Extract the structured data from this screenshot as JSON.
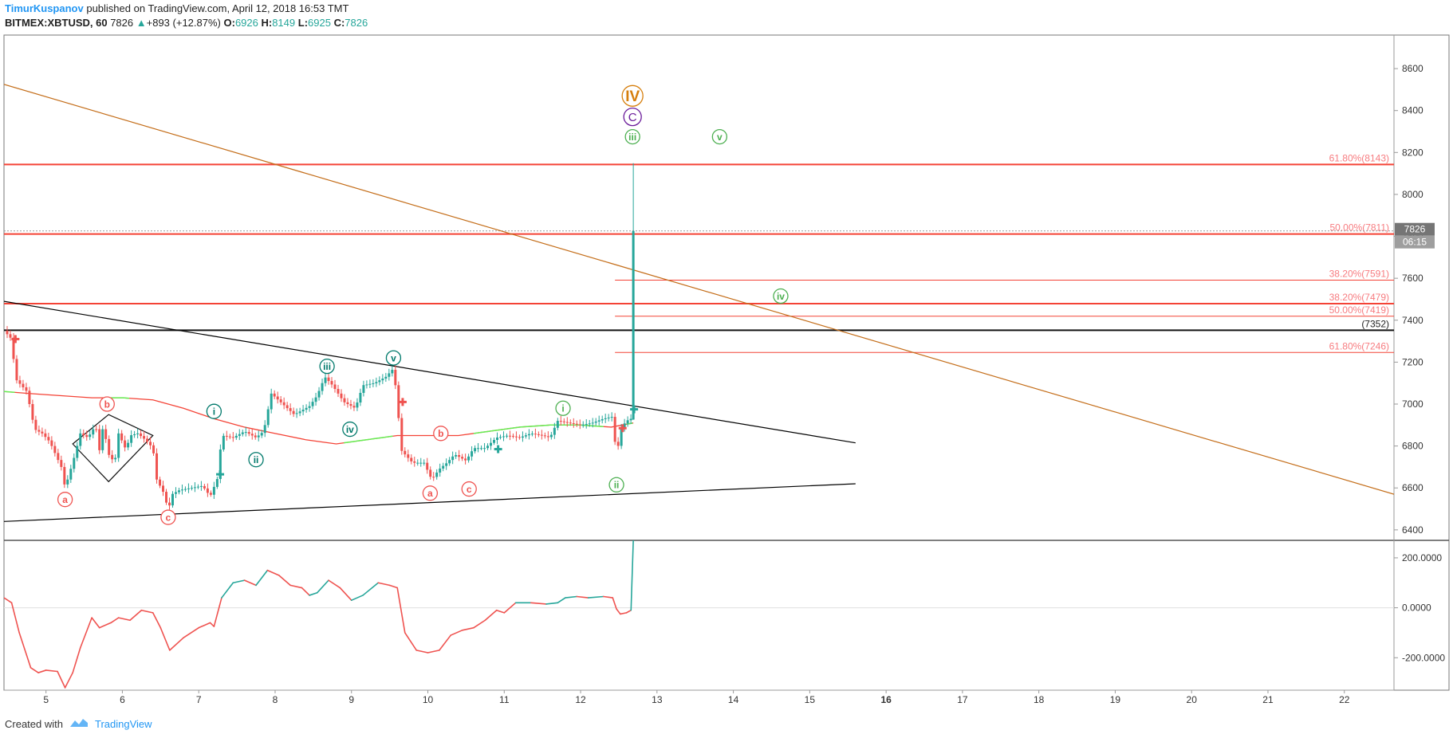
{
  "header": {
    "author": "TimurKuspanov",
    "published": "published on TradingView.com, April 12, 2018 16:53 TMT",
    "symbol": "BITMEX:XBTUSD, 60",
    "last": "7826",
    "change": "+893 (+12.87%)",
    "o_label": "O:",
    "o": "6926",
    "h_label": "H:",
    "h": "8149",
    "l_label": "L:",
    "l": "6925",
    "c_label": "C:",
    "c": "7826"
  },
  "footer": {
    "created": "Created with",
    "brand": "TradingView"
  },
  "colors": {
    "up": "#26a69a",
    "down": "#ef5350",
    "fib": "#f44336",
    "fib_text": "#f77c80",
    "trend_brown": "#c46e1a",
    "ma_red": "#f44336",
    "ma_green": "#66ee55",
    "osc_up": "#26a69a",
    "osc_down": "#ef5350",
    "label_green": "#4caf50",
    "label_teal": "#00796b",
    "label_purple": "#6a1b9a",
    "label_orange": "#d67e0c"
  },
  "chart_data": {
    "type": "candlestick",
    "title": "BITMEX:XBTUSD, 60",
    "x_ticks": [
      "5",
      "6",
      "7",
      "8",
      "9",
      "10",
      "11",
      "12",
      "13",
      "14",
      "15",
      "16",
      "17",
      "18",
      "19",
      "20",
      "21",
      "22"
    ],
    "x_bold_ticks": [
      "16"
    ],
    "y_ticks": [
      6400,
      6600,
      6800,
      7000,
      7200,
      7400,
      7600,
      7800,
      8000,
      8200,
      8400,
      8600
    ],
    "ylim": [
      6350,
      8760
    ],
    "xlim": [
      4.45,
      22.65
    ],
    "last_price": {
      "value": 7826,
      "label": "7826",
      "countdown": "06:15"
    },
    "price_path": [
      [
        4.45,
        7350
      ],
      [
        4.55,
        7310
      ],
      [
        4.6,
        7120
      ],
      [
        4.7,
        7080
      ],
      [
        4.75,
        7060
      ],
      [
        4.85,
        6880
      ],
      [
        4.95,
        6860
      ],
      [
        5.05,
        6820
      ],
      [
        5.1,
        6780
      ],
      [
        5.2,
        6700
      ],
      [
        5.25,
        6600
      ],
      [
        5.3,
        6660
      ],
      [
        5.38,
        6760
      ],
      [
        5.45,
        6860
      ],
      [
        5.55,
        6840
      ],
      [
        5.65,
        6900
      ],
      [
        5.7,
        6780
      ],
      [
        5.75,
        6900
      ],
      [
        5.82,
        6760
      ],
      [
        5.9,
        6720
      ],
      [
        5.95,
        6860
      ],
      [
        6.05,
        6780
      ],
      [
        6.1,
        6850
      ],
      [
        6.2,
        6860
      ],
      [
        6.3,
        6830
      ],
      [
        6.4,
        6790
      ],
      [
        6.45,
        6640
      ],
      [
        6.55,
        6570
      ],
      [
        6.6,
        6490
      ],
      [
        6.65,
        6570
      ],
      [
        6.75,
        6590
      ],
      [
        6.9,
        6600
      ],
      [
        7.05,
        6610
      ],
      [
        7.15,
        6560
      ],
      [
        7.25,
        6650
      ],
      [
        7.3,
        6850
      ],
      [
        7.45,
        6840
      ],
      [
        7.6,
        6870
      ],
      [
        7.75,
        6840
      ],
      [
        7.85,
        6870
      ],
      [
        7.95,
        7050
      ],
      [
        8.1,
        7000
      ],
      [
        8.25,
        6950
      ],
      [
        8.45,
        6990
      ],
      [
        8.55,
        7040
      ],
      [
        8.65,
        7130
      ],
      [
        8.75,
        7090
      ],
      [
        8.9,
        7010
      ],
      [
        9.05,
        6980
      ],
      [
        9.15,
        7090
      ],
      [
        9.3,
        7100
      ],
      [
        9.45,
        7130
      ],
      [
        9.55,
        7170
      ],
      [
        9.6,
        7010
      ],
      [
        9.65,
        6780
      ],
      [
        9.8,
        6720
      ],
      [
        9.95,
        6720
      ],
      [
        10.05,
        6640
      ],
      [
        10.15,
        6690
      ],
      [
        10.25,
        6720
      ],
      [
        10.35,
        6760
      ],
      [
        10.5,
        6730
      ],
      [
        10.6,
        6790
      ],
      [
        10.75,
        6790
      ],
      [
        10.9,
        6840
      ],
      [
        11.05,
        6850
      ],
      [
        11.2,
        6840
      ],
      [
        11.35,
        6860
      ],
      [
        11.5,
        6850
      ],
      [
        11.6,
        6840
      ],
      [
        11.7,
        6920
      ],
      [
        11.85,
        6910
      ],
      [
        12.0,
        6900
      ],
      [
        12.15,
        6910
      ],
      [
        12.3,
        6930
      ],
      [
        12.42,
        6940
      ],
      [
        12.47,
        6740
      ],
      [
        12.52,
        6880
      ],
      [
        12.6,
        6920
      ],
      [
        12.66,
        6930
      ],
      [
        12.68,
        6926
      ],
      [
        12.69,
        7826
      ]
    ],
    "last_candle": {
      "x": 12.69,
      "open": 6926,
      "high": 8149,
      "low": 6925,
      "close": 7826
    },
    "ma": [
      [
        4.45,
        7060
      ],
      [
        4.8,
        7050
      ],
      [
        5.2,
        7040
      ],
      [
        5.6,
        7030
      ],
      [
        6.0,
        7030
      ],
      [
        6.4,
        7020
      ],
      [
        6.8,
        6980
      ],
      [
        7.2,
        6930
      ],
      [
        7.6,
        6890
      ],
      [
        8.0,
        6860
      ],
      [
        8.4,
        6830
      ],
      [
        8.8,
        6810
      ],
      [
        9.2,
        6830
      ],
      [
        9.6,
        6850
      ],
      [
        10.0,
        6850
      ],
      [
        10.4,
        6850
      ],
      [
        10.8,
        6870
      ],
      [
        11.2,
        6890
      ],
      [
        11.6,
        6900
      ],
      [
        12.0,
        6900
      ],
      [
        12.4,
        6890
      ],
      [
        12.69,
        6910
      ]
    ],
    "ma_green_segments": [
      [
        4.45,
        4.6
      ],
      [
        5.85,
        6.1
      ],
      [
        8.9,
        9.55
      ],
      [
        10.6,
        12.3
      ],
      [
        12.6,
        12.69
      ]
    ],
    "fib_levels": [
      {
        "label": "61.80%(8143)",
        "value": 8143,
        "from": 4.45,
        "bold": true
      },
      {
        "label": "50.00%(7811)",
        "value": 7811,
        "from": 4.45,
        "bold": true
      },
      {
        "label": "38.20%(7591)",
        "value": 7591,
        "from": 12.45,
        "bold": false
      },
      {
        "label": "38.20%(7479)",
        "value": 7479,
        "from": 4.45,
        "bold": true
      },
      {
        "label": "50.00%(7419)",
        "value": 7419,
        "from": 12.45,
        "bold": false
      },
      {
        "label": "61.80%(7246)",
        "value": 7246,
        "from": 12.45,
        "bold": false
      }
    ],
    "horizontal_level": {
      "label": "(7352)",
      "value": 7352
    },
    "trend_lines": [
      {
        "name": "upper-triangle-line",
        "p1": [
          4.45,
          7490
        ],
        "p2": [
          15.6,
          6815
        ],
        "color": "#000000"
      },
      {
        "name": "lower-triangle-line",
        "p1": [
          4.45,
          6440
        ],
        "p2": [
          15.6,
          6620
        ],
        "color": "#000000"
      },
      {
        "name": "long-downtrend-line",
        "p1": [
          4.45,
          8525
        ],
        "p2": [
          22.65,
          6570
        ],
        "color": "#c46e1a"
      }
    ],
    "diamond": [
      [
        5.35,
        6810
      ],
      [
        5.82,
        6950
      ],
      [
        6.4,
        6850
      ],
      [
        5.82,
        6630
      ]
    ],
    "wave_labels": [
      {
        "text": "a",
        "x": 5.25,
        "y": 6545,
        "style": "red"
      },
      {
        "text": "b",
        "x": 5.8,
        "y": 7000,
        "style": "red"
      },
      {
        "text": "c",
        "x": 6.6,
        "y": 6460,
        "style": "red"
      },
      {
        "text": "i",
        "x": 7.2,
        "y": 6965,
        "style": "teal"
      },
      {
        "text": "ii",
        "x": 7.75,
        "y": 6735,
        "style": "teal"
      },
      {
        "text": "iii",
        "x": 8.68,
        "y": 7180,
        "style": "teal"
      },
      {
        "text": "iv",
        "x": 8.98,
        "y": 6880,
        "style": "teal"
      },
      {
        "text": "v",
        "x": 9.55,
        "y": 7220,
        "style": "teal"
      },
      {
        "text": "b",
        "x": 10.17,
        "y": 6860,
        "style": "red"
      },
      {
        "text": "a",
        "x": 10.03,
        "y": 6575,
        "style": "red"
      },
      {
        "text": "c",
        "x": 10.54,
        "y": 6595,
        "style": "red"
      },
      {
        "text": "i",
        "x": 11.77,
        "y": 6980,
        "style": "green"
      },
      {
        "text": "ii",
        "x": 12.47,
        "y": 6615,
        "style": "green"
      },
      {
        "text": "iii",
        "x": 12.68,
        "y": 8275,
        "style": "green"
      },
      {
        "text": "v",
        "x": 13.82,
        "y": 8275,
        "style": "green"
      },
      {
        "text": "iv",
        "x": 14.62,
        "y": 7515,
        "style": "green"
      },
      {
        "text": "C",
        "x": 12.68,
        "y": 8370,
        "style": "purple"
      },
      {
        "text": "IV",
        "x": 12.68,
        "y": 8470,
        "style": "orange"
      }
    ],
    "cross_markers": [
      {
        "x": 4.6,
        "y": 7310,
        "color": "#ef5350"
      },
      {
        "x": 7.28,
        "y": 6665,
        "color": "#26a69a"
      },
      {
        "x": 9.67,
        "y": 7010,
        "color": "#ef5350"
      },
      {
        "x": 10.92,
        "y": 6785,
        "color": "#26a69a"
      },
      {
        "x": 12.55,
        "y": 6885,
        "color": "#ef5350"
      },
      {
        "x": 12.7,
        "y": 6975,
        "color": "#26a69a"
      }
    ],
    "oscillator": {
      "y_ticks": [
        200,
        0,
        -200
      ],
      "y_tick_labels": [
        "200.0000",
        "0.0000",
        "-200.0000"
      ],
      "ylim": [
        -330,
        270
      ],
      "values": [
        [
          4.45,
          40
        ],
        [
          4.55,
          20
        ],
        [
          4.65,
          -100
        ],
        [
          4.8,
          -240
        ],
        [
          4.9,
          -260
        ],
        [
          5.0,
          -250
        ],
        [
          5.15,
          -255
        ],
        [
          5.25,
          -320
        ],
        [
          5.35,
          -260
        ],
        [
          5.45,
          -160
        ],
        [
          5.6,
          -40
        ],
        [
          5.7,
          -80
        ],
        [
          5.85,
          -60
        ],
        [
          5.95,
          -40
        ],
        [
          6.1,
          -50
        ],
        [
          6.25,
          -10
        ],
        [
          6.4,
          -20
        ],
        [
          6.5,
          -80
        ],
        [
          6.62,
          -170
        ],
        [
          6.8,
          -120
        ],
        [
          7.0,
          -80
        ],
        [
          7.15,
          -60
        ],
        [
          7.2,
          -75
        ],
        [
          7.3,
          40
        ],
        [
          7.45,
          100
        ],
        [
          7.6,
          110
        ],
        [
          7.75,
          90
        ],
        [
          7.9,
          150
        ],
        [
          8.05,
          130
        ],
        [
          8.2,
          90
        ],
        [
          8.35,
          80
        ],
        [
          8.45,
          50
        ],
        [
          8.55,
          60
        ],
        [
          8.7,
          110
        ],
        [
          8.85,
          80
        ],
        [
          9.0,
          30
        ],
        [
          9.15,
          50
        ],
        [
          9.35,
          100
        ],
        [
          9.5,
          90
        ],
        [
          9.6,
          80
        ],
        [
          9.7,
          -100
        ],
        [
          9.85,
          -170
        ],
        [
          10.0,
          -180
        ],
        [
          10.15,
          -170
        ],
        [
          10.3,
          -110
        ],
        [
          10.45,
          -90
        ],
        [
          10.6,
          -80
        ],
        [
          10.75,
          -50
        ],
        [
          10.9,
          -10
        ],
        [
          11.0,
          -20
        ],
        [
          11.15,
          20
        ],
        [
          11.35,
          20
        ],
        [
          11.55,
          15
        ],
        [
          11.7,
          20
        ],
        [
          11.8,
          40
        ],
        [
          11.95,
          45
        ],
        [
          12.1,
          40
        ],
        [
          12.3,
          45
        ],
        [
          12.42,
          40
        ],
        [
          12.47,
          -5
        ],
        [
          12.52,
          -25
        ],
        [
          12.6,
          -20
        ],
        [
          12.66,
          -10
        ],
        [
          12.69,
          270
        ]
      ]
    }
  }
}
